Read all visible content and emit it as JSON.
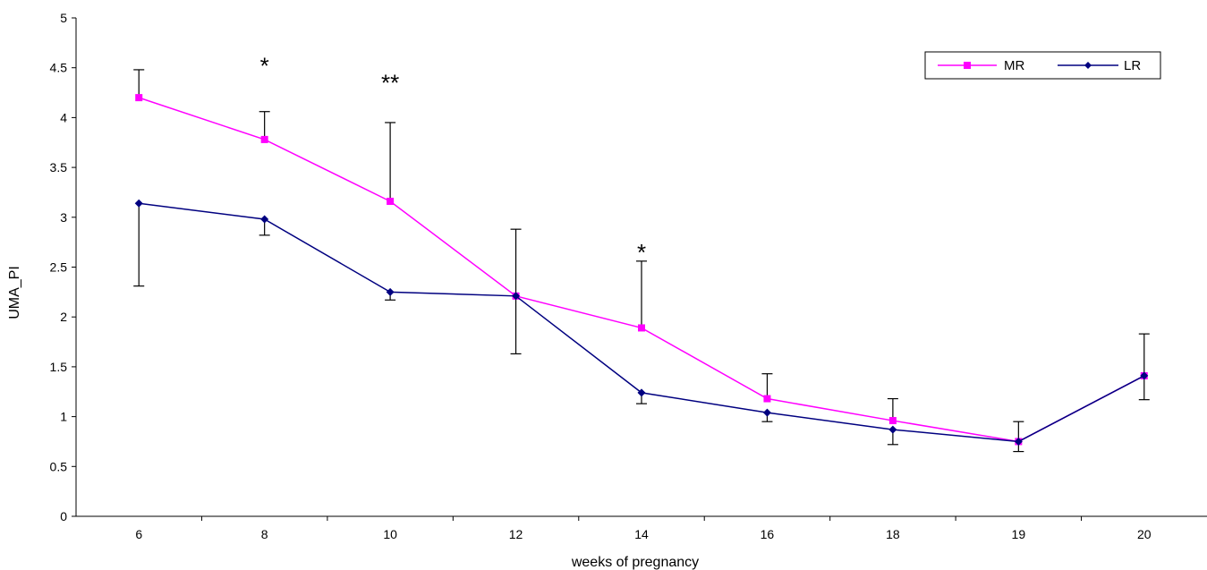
{
  "chart_data": {
    "type": "line",
    "title": "",
    "xlabel": "weeks of pregnancy",
    "ylabel": "UMA_PI",
    "ylim": [
      0,
      5
    ],
    "yticks": [
      "0",
      "0.5",
      "1",
      "1.5",
      "2",
      "2.5",
      "3",
      "3.5",
      "4",
      "4.5",
      "5"
    ],
    "categories": [
      "6",
      "8",
      "10",
      "12",
      "14",
      "16",
      "18",
      "19",
      "20"
    ],
    "grid": false,
    "legend_position": "top-right",
    "series": [
      {
        "name": "MR",
        "color": "#ff00ff",
        "marker": "square",
        "values": [
          4.2,
          3.78,
          3.16,
          2.21,
          1.89,
          1.18,
          0.96,
          0.75,
          1.41
        ],
        "error_up": [
          4.48,
          4.06,
          3.95,
          null,
          2.56,
          1.43,
          1.18,
          0.95,
          1.83
        ]
      },
      {
        "name": "LR",
        "color": "#000080",
        "marker": "diamond",
        "values": [
          3.14,
          2.98,
          2.25,
          2.21,
          1.24,
          1.04,
          0.87,
          0.75,
          1.41
        ],
        "error_down": [
          2.31,
          2.82,
          2.17,
          1.63,
          1.13,
          0.95,
          0.72,
          0.65,
          1.17
        ],
        "error_up": [
          null,
          null,
          null,
          2.88,
          null,
          null,
          null,
          null,
          null
        ]
      }
    ],
    "annotations": [
      {
        "text": "*",
        "category_index": 1,
        "y": 4.6
      },
      {
        "text": "**",
        "category_index": 2,
        "y": 4.43
      },
      {
        "text": "*",
        "category_index": 4,
        "y": 2.73
      }
    ]
  }
}
